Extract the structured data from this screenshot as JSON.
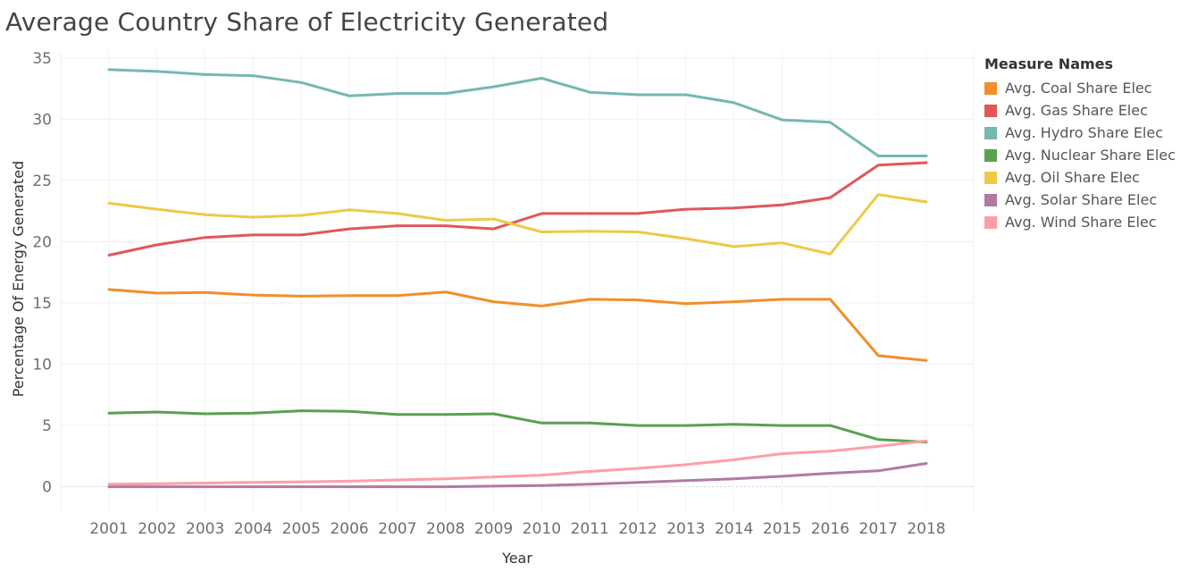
{
  "chart_data": {
    "type": "line",
    "title": "Average Country Share of Electricity Generated",
    "xlabel": "Year",
    "ylabel": "Percentage Of Energy Generated",
    "x": [
      "2001",
      "2002",
      "2003",
      "2004",
      "2005",
      "2006",
      "2007",
      "2008",
      "2009",
      "2010",
      "2011",
      "2012",
      "2013",
      "2014",
      "2015",
      "2016",
      "2017",
      "2018"
    ],
    "yticks": [
      0,
      5,
      10,
      15,
      20,
      25,
      30,
      35
    ],
    "ylim": [
      -2,
      35.5
    ],
    "grid": true,
    "legend_title": "Measure Names",
    "legend_position": "right",
    "series": [
      {
        "name": "Avg. Coal Share Elec",
        "color": "#f28e2b",
        "values": [
          16.1,
          15.8,
          15.85,
          15.65,
          15.55,
          15.6,
          15.6,
          15.9,
          15.1,
          14.75,
          15.3,
          15.25,
          14.95,
          15.1,
          15.3,
          15.3,
          10.7,
          10.3
        ]
      },
      {
        "name": "Avg. Gas Share Elec",
        "color": "#e15759",
        "values": [
          18.9,
          19.75,
          20.35,
          20.55,
          20.55,
          21.05,
          21.3,
          21.3,
          21.05,
          22.3,
          22.3,
          22.3,
          22.65,
          22.75,
          23.0,
          23.6,
          26.25,
          26.45
        ]
      },
      {
        "name": "Avg. Hydro Share Elec",
        "color": "#76b7b2",
        "values": [
          34.05,
          33.9,
          33.65,
          33.55,
          33.0,
          31.9,
          32.1,
          32.1,
          32.65,
          33.35,
          32.2,
          32.0,
          32.0,
          31.35,
          29.95,
          29.75,
          27.0,
          27.0
        ]
      },
      {
        "name": "Avg. Nuclear Share Elec",
        "color": "#59a14f",
        "values": [
          6.0,
          6.1,
          5.95,
          6.0,
          6.2,
          6.15,
          5.9,
          5.9,
          5.95,
          5.2,
          5.2,
          5.0,
          5.0,
          5.1,
          5.0,
          5.0,
          3.85,
          3.65
        ]
      },
      {
        "name": "Avg. Oil Share Elec",
        "color": "#edc948",
        "values": [
          23.15,
          22.65,
          22.2,
          22.0,
          22.15,
          22.6,
          22.3,
          21.75,
          21.85,
          20.8,
          20.85,
          20.8,
          20.25,
          19.6,
          19.9,
          19.0,
          23.85,
          23.25
        ]
      },
      {
        "name": "Avg. Solar Share Elec",
        "color": "#b07aa1",
        "values": [
          0.0,
          0.0,
          0.0,
          0.0,
          0.0,
          0.0,
          0.0,
          0.0,
          0.05,
          0.1,
          0.2,
          0.35,
          0.5,
          0.65,
          0.85,
          1.1,
          1.3,
          1.9
        ]
      },
      {
        "name": "Avg. Wind Share Elec",
        "color": "#ff9da7",
        "values": [
          0.2,
          0.25,
          0.3,
          0.35,
          0.4,
          0.45,
          0.55,
          0.65,
          0.8,
          0.95,
          1.25,
          1.5,
          1.8,
          2.2,
          2.7,
          2.9,
          3.3,
          3.75
        ]
      }
    ]
  }
}
